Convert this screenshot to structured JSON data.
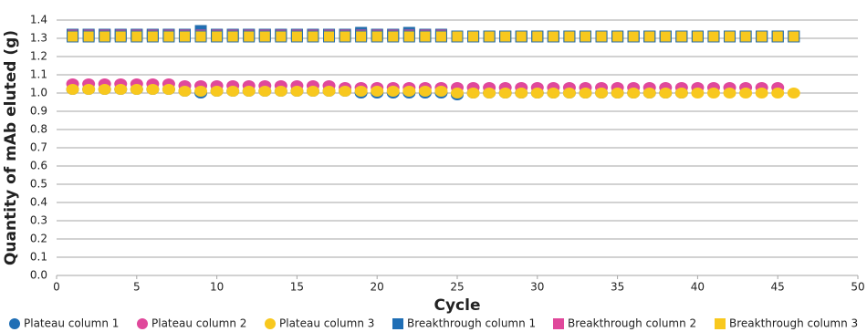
{
  "chart_data": {
    "type": "scatter",
    "xlabel": "Cycle",
    "ylabel": "Quantity of mAb eluted (g)",
    "xlim": [
      0,
      50
    ],
    "xticks": [
      0,
      5,
      10,
      15,
      20,
      25,
      30,
      35,
      40,
      45,
      50
    ],
    "ylim": [
      0,
      1.4
    ],
    "yticks": [
      {
        "value": 0,
        "label": "0.0"
      },
      0.1,
      0.2,
      0.3,
      0.4,
      0.5,
      0.6,
      0.7,
      0.8,
      0.9,
      {
        "value": 1,
        "label": "1.0"
      },
      1.1,
      1.2,
      1.3,
      1.4
    ],
    "grid": true,
    "series": [
      {
        "name": "Plateau column 1",
        "color": "#1f6eb5",
        "marker": "circle",
        "x": [
          1,
          2,
          3,
          4,
          5,
          6,
          7,
          8,
          9,
          10,
          11,
          12,
          13,
          14,
          15,
          16,
          17,
          18,
          19,
          20,
          21,
          22,
          23,
          24,
          25,
          26,
          27,
          28,
          29,
          30,
          31,
          32,
          33,
          34,
          35,
          36,
          37,
          38,
          39
        ],
        "values": [
          1.02,
          1.02,
          1.02,
          1.02,
          1.02,
          1.02,
          1.02,
          1.01,
          1.0,
          1.01,
          1.01,
          1.01,
          1.01,
          1.01,
          1.01,
          1.01,
          1.01,
          1.01,
          1.0,
          1.0,
          1.0,
          1.0,
          1.0,
          1.0,
          0.99,
          1.0,
          1.0,
          1.0,
          1.0,
          1.0,
          1.0,
          1.0,
          1.0,
          1.0,
          1.0,
          1.0,
          1.0,
          1.0,
          1.0
        ]
      },
      {
        "name": "Plateau column 2",
        "color": "#e0489b",
        "marker": "circle",
        "x": [
          1,
          2,
          3,
          4,
          5,
          6,
          7,
          8,
          9,
          10,
          11,
          12,
          13,
          14,
          15,
          16,
          17,
          18,
          19,
          20,
          21,
          22,
          23,
          24,
          25,
          26,
          27,
          28,
          29,
          30,
          31,
          32,
          33,
          34,
          35,
          36,
          37,
          38,
          39,
          40,
          41,
          42,
          43,
          44,
          45
        ],
        "values": [
          1.05,
          1.05,
          1.05,
          1.05,
          1.05,
          1.05,
          1.05,
          1.04,
          1.04,
          1.04,
          1.04,
          1.04,
          1.04,
          1.04,
          1.04,
          1.04,
          1.04,
          1.03,
          1.03,
          1.03,
          1.03,
          1.03,
          1.03,
          1.03,
          1.03,
          1.03,
          1.03,
          1.03,
          1.03,
          1.03,
          1.03,
          1.03,
          1.03,
          1.03,
          1.03,
          1.03,
          1.03,
          1.03,
          1.03,
          1.03,
          1.03,
          1.03,
          1.03,
          1.03,
          1.03
        ]
      },
      {
        "name": "Plateau column 3",
        "color": "#f8c81e",
        "marker": "circle",
        "x": [
          1,
          2,
          3,
          4,
          5,
          6,
          7,
          8,
          9,
          10,
          11,
          12,
          13,
          14,
          15,
          16,
          17,
          18,
          19,
          20,
          21,
          22,
          23,
          24,
          25,
          26,
          27,
          28,
          29,
          30,
          31,
          32,
          33,
          34,
          35,
          36,
          37,
          38,
          39,
          40,
          41,
          42,
          43,
          44,
          45,
          46
        ],
        "values": [
          1.02,
          1.02,
          1.02,
          1.02,
          1.02,
          1.02,
          1.02,
          1.01,
          1.01,
          1.01,
          1.01,
          1.01,
          1.01,
          1.01,
          1.01,
          1.01,
          1.01,
          1.01,
          1.01,
          1.01,
          1.01,
          1.01,
          1.01,
          1.01,
          1.0,
          1.0,
          1.0,
          1.0,
          1.0,
          1.0,
          1.0,
          1.0,
          1.0,
          1.0,
          1.0,
          1.0,
          1.0,
          1.0,
          1.0,
          1.0,
          1.0,
          1.0,
          1.0,
          1.0,
          1.0,
          1.0
        ]
      },
      {
        "name": "Breakthrough column 1",
        "color": "#1f6eb5",
        "marker": "square",
        "x": [
          1,
          2,
          3,
          4,
          5,
          6,
          7,
          8,
          9,
          10,
          11,
          12,
          13,
          14,
          15,
          16,
          17,
          18,
          19,
          20,
          21,
          22,
          23,
          24,
          25,
          26,
          27,
          28,
          29,
          30,
          31,
          32,
          33,
          34,
          35,
          36,
          37,
          38,
          39,
          40,
          41,
          42,
          43,
          44,
          45,
          46
        ],
        "values": [
          1.32,
          1.32,
          1.32,
          1.32,
          1.32,
          1.32,
          1.32,
          1.32,
          1.34,
          1.32,
          1.32,
          1.32,
          1.32,
          1.32,
          1.32,
          1.32,
          1.32,
          1.32,
          1.33,
          1.32,
          1.32,
          1.33,
          1.31,
          1.31,
          1.31,
          1.31,
          1.31,
          1.31,
          1.31,
          1.31,
          1.31,
          1.31,
          1.31,
          1.31,
          1.31,
          1.31,
          1.31,
          1.31,
          1.31,
          1.31,
          1.31,
          1.31,
          1.31,
          1.31,
          1.31,
          1.31
        ]
      },
      {
        "name": "Breakthrough column 2",
        "color": "#e0489b",
        "marker": "square",
        "x": [
          1,
          2,
          3,
          4,
          5,
          6,
          7,
          8,
          9,
          10,
          11,
          12,
          13,
          14,
          15,
          16,
          17,
          18,
          19,
          20,
          21,
          22,
          23,
          24,
          25,
          26,
          27,
          28,
          29,
          30,
          31,
          32,
          33,
          34,
          35,
          36,
          37,
          38,
          39,
          40,
          41,
          42,
          43,
          44,
          45
        ],
        "values": [
          1.32,
          1.32,
          1.32,
          1.32,
          1.32,
          1.32,
          1.32,
          1.32,
          1.32,
          1.32,
          1.32,
          1.32,
          1.32,
          1.32,
          1.32,
          1.32,
          1.32,
          1.32,
          1.32,
          1.32,
          1.32,
          1.32,
          1.32,
          1.32,
          1.31,
          1.31,
          1.31,
          1.31,
          1.31,
          1.31,
          1.31,
          1.31,
          1.31,
          1.31,
          1.31,
          1.31,
          1.31,
          1.31,
          1.31,
          1.31,
          1.31,
          1.31,
          1.31,
          1.31,
          1.31
        ]
      },
      {
        "name": "Breakthrough column 3",
        "color": "#f8c81e",
        "marker": "square",
        "x": [
          1,
          2,
          3,
          4,
          5,
          6,
          7,
          8,
          9,
          10,
          11,
          12,
          13,
          14,
          15,
          16,
          17,
          18,
          19,
          20,
          21,
          22,
          23,
          24,
          25,
          26,
          27,
          28,
          29,
          30,
          31,
          32,
          33,
          34,
          35,
          36,
          37,
          38,
          39,
          40,
          41,
          42,
          43,
          44,
          45,
          46
        ],
        "values": [
          1.31,
          1.31,
          1.31,
          1.31,
          1.31,
          1.31,
          1.31,
          1.31,
          1.31,
          1.31,
          1.31,
          1.31,
          1.31,
          1.31,
          1.31,
          1.31,
          1.31,
          1.31,
          1.31,
          1.31,
          1.31,
          1.31,
          1.31,
          1.31,
          1.31,
          1.31,
          1.31,
          1.31,
          1.31,
          1.31,
          1.31,
          1.31,
          1.31,
          1.31,
          1.31,
          1.31,
          1.31,
          1.31,
          1.31,
          1.31,
          1.31,
          1.31,
          1.31,
          1.31,
          1.31,
          1.31
        ]
      }
    ]
  }
}
